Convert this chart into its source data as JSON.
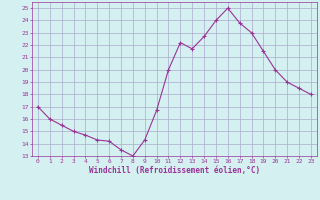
{
  "x": [
    0,
    1,
    2,
    3,
    4,
    5,
    6,
    7,
    8,
    9,
    10,
    11,
    12,
    13,
    14,
    15,
    16,
    17,
    18,
    19,
    20,
    21,
    22,
    23
  ],
  "y": [
    17,
    16,
    15.5,
    15,
    14.7,
    14.3,
    14.2,
    13.5,
    13.0,
    14.3,
    16.7,
    20.0,
    22.2,
    21.7,
    22.7,
    24.0,
    25.0,
    23.8,
    23.0,
    21.5,
    20.0,
    19.0,
    18.5,
    18.0
  ],
  "line_color": "#993399",
  "marker_color": "#993399",
  "bg_color": "#d5f0f0",
  "grid_color": "#aaaacc",
  "axis_label_color": "#993399",
  "tick_label_color": "#993399",
  "xlabel": "Windchill (Refroidissement éolien,°C)",
  "ylim": [
    13,
    25
  ],
  "yticks": [
    13,
    14,
    15,
    16,
    17,
    18,
    19,
    20,
    21,
    22,
    23,
    24,
    25
  ],
  "xticks": [
    0,
    1,
    2,
    3,
    4,
    5,
    6,
    7,
    8,
    9,
    10,
    11,
    12,
    13,
    14,
    15,
    16,
    17,
    18,
    19,
    20,
    21,
    22,
    23
  ]
}
